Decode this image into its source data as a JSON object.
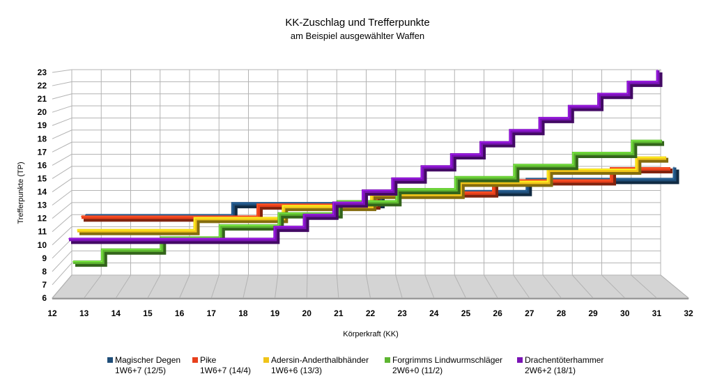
{
  "chart_data": {
    "type": "line",
    "title": "KK-Zuschlag und Trefferpunkte",
    "subtitle": "am Beispiel ausgewählter Waffen",
    "xlabel": "Körperkraft (KK)",
    "ylabel": "Trefferpunkte (TP)",
    "xlim": [
      12,
      32
    ],
    "ylim": [
      6,
      23
    ],
    "x_ticks": [
      "12",
      "13",
      "14",
      "15",
      "16",
      "17",
      "18",
      "19",
      "20",
      "21",
      "22",
      "23",
      "24",
      "25",
      "26",
      "27",
      "28",
      "29",
      "30",
      "31",
      "32"
    ],
    "y_ticks": [
      "6",
      "7",
      "8",
      "9",
      "10",
      "11",
      "12",
      "13",
      "14",
      "15",
      "16",
      "17",
      "18",
      "19",
      "20",
      "21",
      "22",
      "23"
    ],
    "grid": true,
    "legend_position": "bottom",
    "series": [
      {
        "name": "Magischer Degen",
        "note": "1W6+7  (12/5)",
        "color": "#1f4e79",
        "x": [
          12,
          13,
          14,
          15,
          16,
          17,
          18,
          19,
          20,
          21,
          22,
          23,
          24,
          25,
          26,
          27,
          28,
          29,
          30,
          31,
          32
        ],
        "values": [
          10.5,
          10.5,
          10.5,
          10.5,
          10.5,
          11.5,
          11.5,
          11.5,
          11.5,
          11.5,
          12.5,
          12.5,
          12.5,
          12.5,
          12.5,
          13.5,
          13.5,
          13.5,
          13.5,
          13.5,
          14.5
        ]
      },
      {
        "name": "Pike",
        "note": "1W6+7  (14/4)",
        "color": "#e8401c",
        "x": [
          12,
          13,
          14,
          15,
          16,
          17,
          18,
          19,
          20,
          21,
          22,
          23,
          24,
          25,
          26,
          27,
          28,
          29,
          30,
          31,
          32
        ],
        "values": [
          10.5,
          10.5,
          10.5,
          10.5,
          10.5,
          10.5,
          11.5,
          11.5,
          11.5,
          11.5,
          12.5,
          12.5,
          12.5,
          12.5,
          13.5,
          13.5,
          13.5,
          13.5,
          14.5,
          14.5,
          14.5
        ]
      },
      {
        "name": "Adersin-Anderthalbhänder",
        "note": "1W6+6  (13/3)",
        "color": "#f0c419",
        "x": [
          12,
          13,
          14,
          15,
          16,
          17,
          18,
          19,
          20,
          21,
          22,
          23,
          24,
          25,
          26,
          27,
          28,
          29,
          30,
          31,
          32
        ],
        "values": [
          9.5,
          9.5,
          9.5,
          9.5,
          10.5,
          10.5,
          10.5,
          11.5,
          11.5,
          11.5,
          12.5,
          12.5,
          12.5,
          13.5,
          13.5,
          13.5,
          14.5,
          14.5,
          14.5,
          15.5,
          15.5
        ]
      },
      {
        "name": "Forgrimms Lindwurmschläger",
        "note": "2W6+0  (11/2)",
        "color": "#5db531",
        "x": [
          12,
          13,
          14,
          15,
          16,
          17,
          18,
          19,
          20,
          21,
          22,
          23,
          24,
          25,
          26,
          27,
          28,
          29,
          30,
          31,
          32
        ],
        "values": [
          7,
          8,
          8,
          9,
          9,
          10,
          10,
          11,
          11,
          12,
          12,
          13,
          13,
          14,
          14,
          15,
          15,
          16,
          16,
          17,
          17
        ]
      },
      {
        "name": "Drachentöterhammer",
        "note": "2W6+2  (18/1)",
        "color": "#7a13b5",
        "x": [
          12,
          13,
          14,
          15,
          16,
          17,
          18,
          19,
          20,
          21,
          22,
          23,
          24,
          25,
          26,
          27,
          28,
          29,
          30,
          31,
          32
        ],
        "values": [
          9,
          9,
          9,
          9,
          9,
          9,
          9,
          10,
          11,
          12,
          13,
          14,
          15,
          16,
          17,
          18,
          19,
          20,
          21,
          22,
          23
        ]
      }
    ]
  }
}
